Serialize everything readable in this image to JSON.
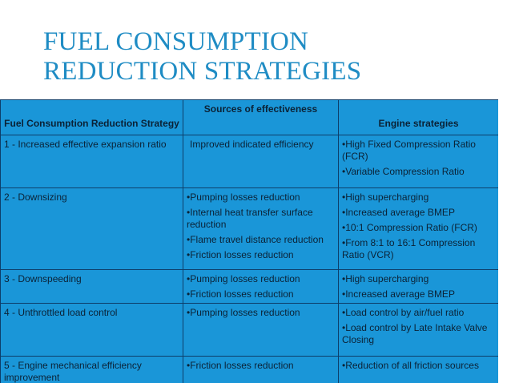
{
  "title": {
    "line1": "FUEL CONSUMPTION",
    "line2": "REDUCTION STRATEGIES"
  },
  "table": {
    "headers": {
      "strategy": "Fuel Consumption Reduction Strategy",
      "sources": "Sources of effectiveness",
      "engine": "Engine strategies"
    },
    "rows": [
      {
        "strategy": "1 - Increased effective expansion ratio",
        "sources": [
          "Improved indicated efficiency"
        ],
        "engine": [
          "•High Fixed Compression Ratio (FCR)",
          "•Variable Compression Ratio"
        ]
      },
      {
        "strategy": "2 - Downsizing",
        "sources": [
          "•Pumping losses reduction",
          "•Internal heat transfer surface reduction",
          "•Flame travel distance reduction",
          "•Friction losses reduction"
        ],
        "engine": [
          "•High supercharging",
          "•Increased average BMEP",
          "•10:1 Compression Ratio (FCR)",
          "•From 8:1 to 16:1 Compression Ratio (VCR)"
        ]
      },
      {
        "strategy": "3 - Downspeeding",
        "sources": [
          "•Pumping losses reduction",
          "•Friction losses reduction"
        ],
        "engine": [
          "•High supercharging",
          "•Increased average BMEP"
        ]
      },
      {
        "strategy": "4 - Unthrottled load control",
        "sources": [
          "•Pumping losses reduction"
        ],
        "engine": [
          "•Load control by air/fuel ratio",
          "•Load control by Late Intake Valve Closing"
        ]
      },
      {
        "strategy": "5 - Engine mechanical efficiency improvement",
        "sources": [
          "•Friction losses reduction"
        ],
        "engine": [
          "•Reduction of all friction sources"
        ]
      }
    ]
  }
}
